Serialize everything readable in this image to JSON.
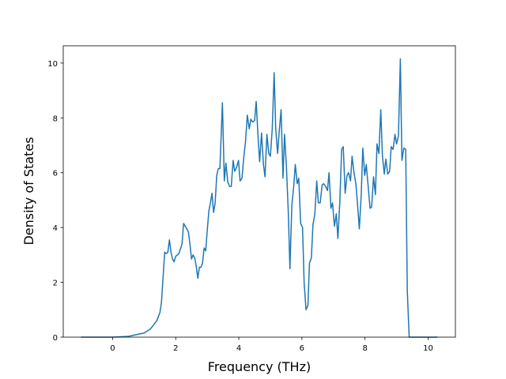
{
  "chart_data": {
    "type": "line",
    "xlabel": "Frequency (THz)",
    "ylabel": "Density of States",
    "x": [
      -1,
      0,
      0.5,
      1.0,
      1.2,
      1.4,
      1.5,
      1.55,
      1.6,
      1.65,
      1.7,
      1.75,
      1.8,
      1.85,
      1.9,
      1.95,
      2.0,
      2.1,
      2.2,
      2.25,
      2.3,
      2.4,
      2.45,
      2.5,
      2.55,
      2.6,
      2.65,
      2.7,
      2.75,
      2.8,
      2.85,
      2.9,
      2.95,
      3.0,
      3.05,
      3.1,
      3.15,
      3.2,
      3.25,
      3.3,
      3.35,
      3.4,
      3.48,
      3.54,
      3.59,
      3.65,
      3.71,
      3.76,
      3.82,
      3.87,
      3.93,
      3.99,
      4.04,
      4.1,
      4.16,
      4.21,
      4.27,
      4.33,
      4.38,
      4.44,
      4.5,
      4.55,
      4.61,
      4.66,
      4.72,
      4.78,
      4.83,
      4.89,
      4.95,
      5.0,
      5.06,
      5.12,
      5.17,
      5.23,
      5.28,
      5.34,
      5.4,
      5.45,
      5.51,
      5.57,
      5.62,
      5.68,
      5.74,
      5.79,
      5.85,
      5.9,
      5.96,
      6.02,
      6.07,
      6.13,
      6.19,
      6.24,
      6.3,
      6.35,
      6.41,
      6.47,
      6.52,
      6.58,
      6.64,
      6.69,
      6.75,
      6.81,
      6.86,
      6.92,
      6.97,
      7.03,
      7.09,
      7.14,
      7.2,
      7.26,
      7.31,
      7.37,
      7.43,
      7.48,
      7.54,
      7.59,
      7.65,
      7.71,
      7.76,
      7.82,
      7.88,
      7.93,
      7.99,
      8.04,
      8.1,
      8.16,
      8.21,
      8.27,
      8.33,
      8.38,
      8.44,
      8.5,
      8.55,
      8.61,
      8.66,
      8.72,
      8.78,
      8.83,
      8.89,
      8.95,
      9.0,
      9.06,
      9.12,
      9.17,
      9.23,
      9.29,
      9.34,
      9.4,
      10.3
    ],
    "series": [
      {
        "color": "#1f77b4",
        "values": [
          0,
          0,
          0.03,
          0.15,
          0.3,
          0.6,
          0.9,
          1.3,
          2.2,
          3.1,
          3.05,
          3.1,
          3.55,
          3.1,
          2.85,
          2.75,
          2.95,
          3.05,
          3.4,
          4.15,
          4.05,
          3.85,
          3.4,
          2.85,
          3.0,
          2.9,
          2.6,
          2.15,
          2.55,
          2.55,
          2.7,
          3.25,
          3.15,
          3.9,
          4.6,
          4.9,
          5.25,
          4.55,
          4.9,
          5.9,
          6.15,
          6.15,
          8.55,
          5.7,
          6.35,
          5.65,
          5.5,
          5.5,
          6.45,
          6.05,
          6.2,
          6.45,
          5.7,
          5.8,
          6.6,
          7.1,
          8.1,
          7.6,
          7.95,
          7.85,
          7.9,
          8.6,
          7.3,
          6.4,
          7.45,
          6.3,
          5.85,
          7.4,
          6.7,
          6.6,
          7.6,
          9.65,
          7.6,
          6.7,
          7.5,
          8.3,
          5.8,
          7.4,
          6.2,
          4.5,
          2.5,
          4.8,
          5.5,
          6.3,
          5.6,
          5.8,
          4.15,
          4.0,
          2.0,
          1.0,
          1.15,
          2.7,
          2.9,
          4.1,
          4.5,
          5.7,
          4.9,
          4.9,
          5.55,
          5.6,
          5.5,
          5.35,
          6.0,
          4.7,
          4.9,
          4.05,
          4.5,
          3.6,
          4.9,
          6.85,
          6.95,
          5.25,
          5.9,
          6.0,
          5.7,
          6.6,
          6.0,
          5.6,
          4.9,
          3.95,
          5.2,
          6.9,
          5.9,
          6.3,
          5.5,
          4.7,
          4.75,
          5.85,
          5.2,
          7.05,
          6.7,
          8.3,
          6.65,
          5.95,
          6.5,
          5.95,
          6.05,
          6.95,
          6.85,
          7.4,
          7.05,
          7.35,
          10.15,
          6.45,
          6.9,
          6.85,
          1.7,
          0,
          0
        ]
      }
    ],
    "xlim": [
      -1.565,
      10.865
    ],
    "ylim": [
      0,
      10.63
    ],
    "xticks": [
      0,
      2,
      4,
      6,
      8,
      10
    ],
    "yticks": [
      0,
      2,
      4,
      6,
      8,
      10
    ]
  }
}
